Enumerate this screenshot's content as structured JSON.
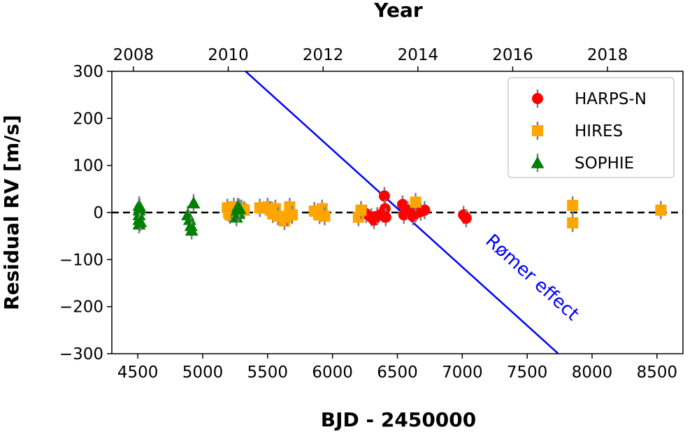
{
  "chart_data": {
    "type": "scatter",
    "xlabel": "BJD - 2450000",
    "ylabel": "Residual RV [m/s]",
    "top_xlabel": "Year",
    "xlim": [
      4300,
      8700
    ],
    "ylim": [
      -300,
      300
    ],
    "x_ticks": [
      "4500",
      "5000",
      "5500",
      "6000",
      "6500",
      "7000",
      "7500",
      "8000",
      "8500"
    ],
    "y_ticks": [
      "300",
      "200",
      "100",
      "0",
      "−100",
      "−200",
      "−300"
    ],
    "top_ticks": [
      "2008",
      "2010",
      "2012",
      "2014",
      "2016",
      "2018"
    ],
    "legend_position": "top-right",
    "zero_line": {
      "y": 0,
      "style": "dashed",
      "color": "#000000"
    },
    "series": [
      {
        "name": "HARPS-N",
        "marker": "circle",
        "color": "#ff0000",
        "points": [
          [
            6260,
            -3
          ],
          [
            6300,
            -10
          ],
          [
            6320,
            -16
          ],
          [
            6345,
            -8
          ],
          [
            6385,
            -2
          ],
          [
            6400,
            35
          ],
          [
            6405,
            8
          ],
          [
            6410,
            -10
          ],
          [
            6540,
            17
          ],
          [
            6550,
            -5
          ],
          [
            6580,
            5
          ],
          [
            6620,
            -8
          ],
          [
            6640,
            -2
          ],
          [
            6680,
            2
          ],
          [
            6710,
            5
          ],
          [
            7010,
            -5
          ],
          [
            7030,
            -12
          ]
        ]
      },
      {
        "name": "HIRES",
        "marker": "square",
        "color": "#ffa500",
        "points": [
          [
            5190,
            10
          ],
          [
            5200,
            0
          ],
          [
            5210,
            -5
          ],
          [
            5220,
            5
          ],
          [
            5240,
            12
          ],
          [
            5300,
            8
          ],
          [
            5320,
            5
          ],
          [
            5440,
            10
          ],
          [
            5500,
            12
          ],
          [
            5520,
            5
          ],
          [
            5540,
            -3
          ],
          [
            5560,
            8
          ],
          [
            5580,
            -8
          ],
          [
            5630,
            -18
          ],
          [
            5650,
            -10
          ],
          [
            5670,
            12
          ],
          [
            5690,
            -5
          ],
          [
            5860,
            3
          ],
          [
            5900,
            -5
          ],
          [
            5920,
            8
          ],
          [
            5940,
            -8
          ],
          [
            6200,
            -10
          ],
          [
            6220,
            5
          ],
          [
            6640,
            22
          ],
          [
            7850,
            15
          ],
          [
            7850,
            -22
          ],
          [
            8530,
            5
          ]
        ]
      },
      {
        "name": "SOPHIE",
        "marker": "triangle",
        "color": "#008000",
        "points": [
          [
            4510,
            15
          ],
          [
            4510,
            5
          ],
          [
            4510,
            -5
          ],
          [
            4510,
            -15
          ],
          [
            4510,
            -25
          ],
          [
            4515,
            10
          ],
          [
            4520,
            -20
          ],
          [
            4885,
            -5
          ],
          [
            4900,
            -15
          ],
          [
            4910,
            -28
          ],
          [
            4915,
            -38
          ],
          [
            4930,
            20
          ],
          [
            5260,
            -10
          ],
          [
            5265,
            5
          ],
          [
            5270,
            12
          ],
          [
            5275,
            -2
          ],
          [
            5280,
            10
          ],
          [
            5285,
            8
          ]
        ]
      }
    ],
    "romer_line": {
      "label": "Rømer effect",
      "color": "#0000ff",
      "points": [
        [
          5330,
          300
        ],
        [
          7740,
          -300
        ]
      ]
    }
  }
}
